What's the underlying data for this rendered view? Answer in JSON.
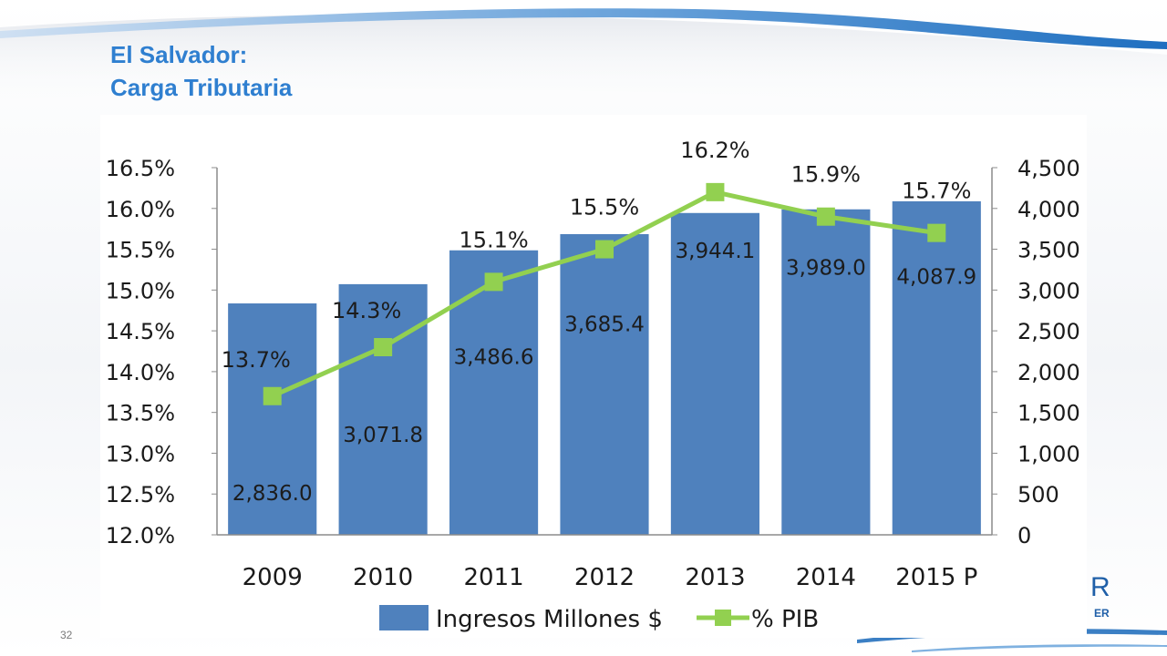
{
  "slide": {
    "title_line1": "El Salvador:",
    "title_line2": "Carga Tributaria",
    "page_number": "32",
    "logo_fragment_top": "R",
    "logo_fragment_bottom": "ER"
  },
  "chart_data": {
    "type": "bar",
    "categories": [
      "2009",
      "2010",
      "2011",
      "2012",
      "2013",
      "2014",
      "2015 P"
    ],
    "series": [
      {
        "name": "Ingresos Millones $",
        "type": "bar",
        "axis": "right",
        "values": [
          2836.0,
          3071.8,
          3486.6,
          3685.4,
          3944.1,
          3989.0,
          4087.9
        ],
        "labels": [
          "2,836.0",
          "3,071.8",
          "3,486.6",
          "3,685.4",
          "3,944.1",
          "3,989.0",
          "4,087.9"
        ],
        "color": "#4f81bd"
      },
      {
        "name": "% PIB",
        "type": "line",
        "axis": "left",
        "values": [
          13.7,
          14.3,
          15.1,
          15.5,
          16.2,
          15.9,
          15.7
        ],
        "labels": [
          "13.7%",
          "14.3%",
          "15.1%",
          "15.5%",
          "16.2%",
          "15.9%",
          "15.7%"
        ],
        "color": "#92d050"
      }
    ],
    "y_left": {
      "ylim": [
        12.0,
        16.5
      ],
      "ticks": [
        12.0,
        12.5,
        13.0,
        13.5,
        14.0,
        14.5,
        15.0,
        15.5,
        16.0,
        16.5
      ],
      "tick_labels": [
        "12.0%",
        "12.5%",
        "13.0%",
        "13.5%",
        "14.0%",
        "14.5%",
        "15.0%",
        "15.5%",
        "16.0%",
        "16.5%"
      ]
    },
    "y_right": {
      "ylim": [
        0,
        4500
      ],
      "ticks": [
        0,
        500,
        1000,
        1500,
        2000,
        2500,
        3000,
        3500,
        4000,
        4500
      ],
      "tick_labels": [
        "0",
        "500",
        "1,000",
        "1,500",
        "2,000",
        "2,500",
        "3,000",
        "3,500",
        "4,000",
        "4,500"
      ]
    },
    "legend": {
      "position": "bottom"
    },
    "grid": false
  }
}
